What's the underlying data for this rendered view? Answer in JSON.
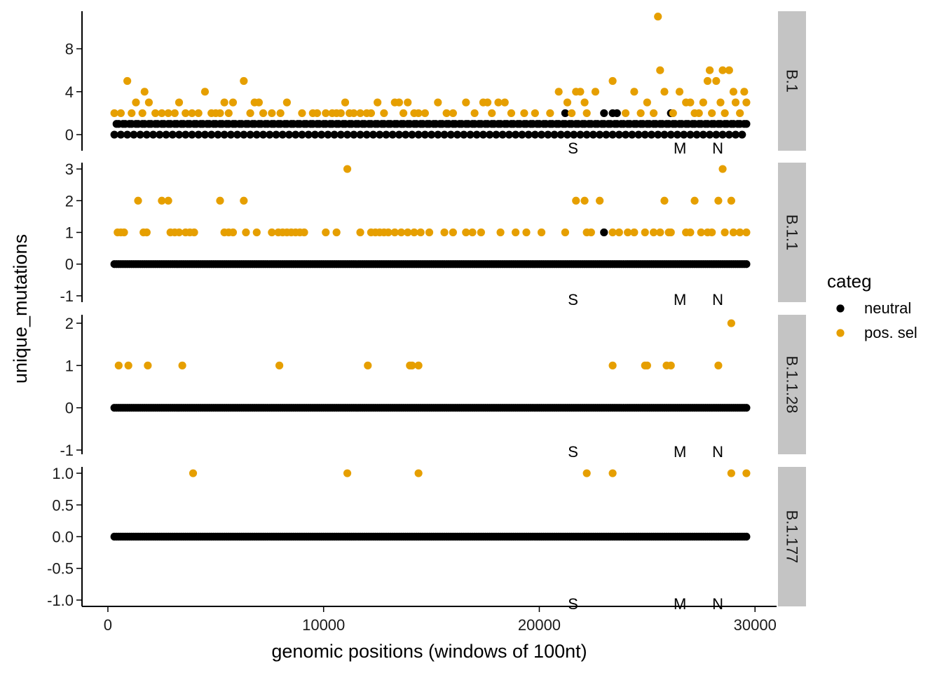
{
  "chart_data": {
    "type": "scatter",
    "xlabel": "genomic positions (windows of 100nt)",
    "ylabel": "unique_mutations",
    "x_ticks": [
      0,
      10000,
      20000,
      30000
    ],
    "x_tick_labels": [
      "0",
      "10000",
      "20000",
      "30000"
    ],
    "xlim": [
      -1200,
      31000
    ],
    "legend": {
      "title": "categ",
      "position": "right",
      "entries": [
        {
          "label": "neutral",
          "color": "#000000"
        },
        {
          "label": "pos. sel",
          "color": "#E69F00"
        }
      ]
    },
    "gene_annotations": [
      {
        "label": "S",
        "x": 21563
      },
      {
        "label": "M",
        "x": 26523
      },
      {
        "label": "N",
        "x": 28274
      }
    ],
    "neutral_x_range": [
      300,
      29600
    ],
    "panels": [
      {
        "strip": "B.1",
        "ylim": [
          -1.5,
          11.5
        ],
        "y_ticks": [
          0,
          4,
          8
        ],
        "y_tick_labels": [
          "0",
          "4",
          "8"
        ],
        "neutral_points": [
          {
            "x": 21200,
            "y": 2
          },
          {
            "x": 23000,
            "y": 2
          },
          {
            "x": 23400,
            "y": 2
          },
          {
            "x": 23600,
            "y": 2
          },
          {
            "x": 26100,
            "y": 2
          }
        ],
        "pos_sel_points": [
          {
            "x": 300,
            "y": 2
          },
          {
            "x": 600,
            "y": 2
          },
          {
            "x": 900,
            "y": 5
          },
          {
            "x": 1100,
            "y": 2
          },
          {
            "x": 1300,
            "y": 3
          },
          {
            "x": 1600,
            "y": 2
          },
          {
            "x": 1700,
            "y": 4
          },
          {
            "x": 1900,
            "y": 3
          },
          {
            "x": 2200,
            "y": 2
          },
          {
            "x": 2500,
            "y": 2
          },
          {
            "x": 2800,
            "y": 2
          },
          {
            "x": 3100,
            "y": 2
          },
          {
            "x": 3300,
            "y": 3
          },
          {
            "x": 3600,
            "y": 2
          },
          {
            "x": 3900,
            "y": 2
          },
          {
            "x": 4200,
            "y": 2
          },
          {
            "x": 4500,
            "y": 4
          },
          {
            "x": 4800,
            "y": 2
          },
          {
            "x": 5000,
            "y": 2
          },
          {
            "x": 5200,
            "y": 2
          },
          {
            "x": 5400,
            "y": 3
          },
          {
            "x": 5600,
            "y": 2
          },
          {
            "x": 5800,
            "y": 3
          },
          {
            "x": 6300,
            "y": 5
          },
          {
            "x": 6600,
            "y": 2
          },
          {
            "x": 6800,
            "y": 3
          },
          {
            "x": 7000,
            "y": 3
          },
          {
            "x": 7200,
            "y": 2
          },
          {
            "x": 7600,
            "y": 2
          },
          {
            "x": 8000,
            "y": 2
          },
          {
            "x": 8300,
            "y": 3
          },
          {
            "x": 9000,
            "y": 2
          },
          {
            "x": 9500,
            "y": 2
          },
          {
            "x": 9700,
            "y": 2
          },
          {
            "x": 10100,
            "y": 2
          },
          {
            "x": 10400,
            "y": 2
          },
          {
            "x": 10600,
            "y": 2
          },
          {
            "x": 10800,
            "y": 2
          },
          {
            "x": 11000,
            "y": 3
          },
          {
            "x": 11200,
            "y": 2
          },
          {
            "x": 11400,
            "y": 2
          },
          {
            "x": 11700,
            "y": 2
          },
          {
            "x": 12000,
            "y": 2
          },
          {
            "x": 12200,
            "y": 2
          },
          {
            "x": 12500,
            "y": 3
          },
          {
            "x": 12800,
            "y": 2
          },
          {
            "x": 13300,
            "y": 3
          },
          {
            "x": 13500,
            "y": 3
          },
          {
            "x": 13700,
            "y": 2
          },
          {
            "x": 13900,
            "y": 3
          },
          {
            "x": 14200,
            "y": 2
          },
          {
            "x": 14400,
            "y": 2
          },
          {
            "x": 14700,
            "y": 2
          },
          {
            "x": 15300,
            "y": 3
          },
          {
            "x": 15700,
            "y": 2
          },
          {
            "x": 16000,
            "y": 2
          },
          {
            "x": 16600,
            "y": 3
          },
          {
            "x": 17000,
            "y": 2
          },
          {
            "x": 17400,
            "y": 3
          },
          {
            "x": 17600,
            "y": 3
          },
          {
            "x": 17800,
            "y": 2
          },
          {
            "x": 18100,
            "y": 3
          },
          {
            "x": 18400,
            "y": 3
          },
          {
            "x": 18700,
            "y": 2
          },
          {
            "x": 19300,
            "y": 2
          },
          {
            "x": 19800,
            "y": 2
          },
          {
            "x": 20500,
            "y": 2
          },
          {
            "x": 20900,
            "y": 4
          },
          {
            "x": 21300,
            "y": 3
          },
          {
            "x": 21500,
            "y": 2
          },
          {
            "x": 21700,
            "y": 4
          },
          {
            "x": 21900,
            "y": 4
          },
          {
            "x": 22100,
            "y": 3
          },
          {
            "x": 22200,
            "y": 2
          },
          {
            "x": 22600,
            "y": 4
          },
          {
            "x": 23400,
            "y": 5
          },
          {
            "x": 24000,
            "y": 2
          },
          {
            "x": 24400,
            "y": 4
          },
          {
            "x": 24700,
            "y": 2
          },
          {
            "x": 25000,
            "y": 3
          },
          {
            "x": 25300,
            "y": 2
          },
          {
            "x": 25500,
            "y": 11
          },
          {
            "x": 25600,
            "y": 6
          },
          {
            "x": 25800,
            "y": 4
          },
          {
            "x": 26200,
            "y": 2
          },
          {
            "x": 26500,
            "y": 4
          },
          {
            "x": 26800,
            "y": 3
          },
          {
            "x": 27000,
            "y": 3
          },
          {
            "x": 27200,
            "y": 2
          },
          {
            "x": 27400,
            "y": 2
          },
          {
            "x": 27600,
            "y": 3
          },
          {
            "x": 27800,
            "y": 5
          },
          {
            "x": 27900,
            "y": 6
          },
          {
            "x": 28000,
            "y": 2
          },
          {
            "x": 28200,
            "y": 5
          },
          {
            "x": 28400,
            "y": 3
          },
          {
            "x": 28500,
            "y": 6
          },
          {
            "x": 28600,
            "y": 2
          },
          {
            "x": 28800,
            "y": 6
          },
          {
            "x": 29000,
            "y": 4
          },
          {
            "x": 29100,
            "y": 3
          },
          {
            "x": 29300,
            "y": 2
          },
          {
            "x": 29500,
            "y": 4
          },
          {
            "x": 29600,
            "y": 3
          }
        ]
      },
      {
        "strip": "B.1.1",
        "ylim": [
          -1.2,
          3.2
        ],
        "y_ticks": [
          -1,
          0,
          1,
          2,
          3
        ],
        "y_tick_labels": [
          "-1",
          "0",
          "1",
          "2",
          "3"
        ],
        "neutral_points": [
          {
            "x": 23000,
            "y": 1
          }
        ],
        "pos_sel_points": [
          {
            "x": 450,
            "y": 1
          },
          {
            "x": 600,
            "y": 1
          },
          {
            "x": 750,
            "y": 1
          },
          {
            "x": 1400,
            "y": 2
          },
          {
            "x": 1650,
            "y": 1
          },
          {
            "x": 1800,
            "y": 1
          },
          {
            "x": 2500,
            "y": 2
          },
          {
            "x": 2800,
            "y": 2
          },
          {
            "x": 2900,
            "y": 1
          },
          {
            "x": 3100,
            "y": 1
          },
          {
            "x": 3300,
            "y": 1
          },
          {
            "x": 3600,
            "y": 1
          },
          {
            "x": 3800,
            "y": 1
          },
          {
            "x": 4000,
            "y": 1
          },
          {
            "x": 5200,
            "y": 2
          },
          {
            "x": 5400,
            "y": 1
          },
          {
            "x": 5600,
            "y": 1
          },
          {
            "x": 5800,
            "y": 1
          },
          {
            "x": 6300,
            "y": 2
          },
          {
            "x": 6400,
            "y": 1
          },
          {
            "x": 6900,
            "y": 1
          },
          {
            "x": 7600,
            "y": 1
          },
          {
            "x": 7900,
            "y": 1
          },
          {
            "x": 8100,
            "y": 1
          },
          {
            "x": 8300,
            "y": 1
          },
          {
            "x": 8500,
            "y": 1
          },
          {
            "x": 8700,
            "y": 1
          },
          {
            "x": 8900,
            "y": 1
          },
          {
            "x": 9100,
            "y": 1
          },
          {
            "x": 10100,
            "y": 1
          },
          {
            "x": 10600,
            "y": 1
          },
          {
            "x": 11100,
            "y": 3
          },
          {
            "x": 11700,
            "y": 1
          },
          {
            "x": 12200,
            "y": 1
          },
          {
            "x": 12400,
            "y": 1
          },
          {
            "x": 12600,
            "y": 1
          },
          {
            "x": 12800,
            "y": 1
          },
          {
            "x": 13000,
            "y": 1
          },
          {
            "x": 13300,
            "y": 1
          },
          {
            "x": 13600,
            "y": 1
          },
          {
            "x": 13900,
            "y": 1
          },
          {
            "x": 14200,
            "y": 1
          },
          {
            "x": 14500,
            "y": 1
          },
          {
            "x": 14900,
            "y": 1
          },
          {
            "x": 15600,
            "y": 1
          },
          {
            "x": 16000,
            "y": 1
          },
          {
            "x": 16600,
            "y": 1
          },
          {
            "x": 16900,
            "y": 1
          },
          {
            "x": 17300,
            "y": 1
          },
          {
            "x": 18200,
            "y": 1
          },
          {
            "x": 18900,
            "y": 1
          },
          {
            "x": 19400,
            "y": 1
          },
          {
            "x": 20100,
            "y": 1
          },
          {
            "x": 21200,
            "y": 1
          },
          {
            "x": 21700,
            "y": 2
          },
          {
            "x": 22100,
            "y": 2
          },
          {
            "x": 22200,
            "y": 1
          },
          {
            "x": 22400,
            "y": 1
          },
          {
            "x": 22800,
            "y": 2
          },
          {
            "x": 23400,
            "y": 1
          },
          {
            "x": 23700,
            "y": 1
          },
          {
            "x": 24100,
            "y": 1
          },
          {
            "x": 24400,
            "y": 1
          },
          {
            "x": 24900,
            "y": 1
          },
          {
            "x": 25300,
            "y": 1
          },
          {
            "x": 25600,
            "y": 1
          },
          {
            "x": 25800,
            "y": 2
          },
          {
            "x": 26000,
            "y": 1
          },
          {
            "x": 26100,
            "y": 1
          },
          {
            "x": 26800,
            "y": 1
          },
          {
            "x": 27000,
            "y": 1
          },
          {
            "x": 27200,
            "y": 2
          },
          {
            "x": 27500,
            "y": 1
          },
          {
            "x": 27800,
            "y": 1
          },
          {
            "x": 28000,
            "y": 1
          },
          {
            "x": 28300,
            "y": 2
          },
          {
            "x": 28500,
            "y": 3
          },
          {
            "x": 28600,
            "y": 1
          },
          {
            "x": 28900,
            "y": 2
          },
          {
            "x": 29000,
            "y": 1
          },
          {
            "x": 29300,
            "y": 1
          },
          {
            "x": 29600,
            "y": 1
          }
        ]
      },
      {
        "strip": "B.1.1.28",
        "ylim": [
          -1.1,
          2.2
        ],
        "y_ticks": [
          -1,
          0,
          1,
          2
        ],
        "y_tick_labels": [
          "-1",
          "0",
          "1",
          "2"
        ],
        "neutral_points": [],
        "pos_sel_points": [
          {
            "x": 500,
            "y": 1
          },
          {
            "x": 950,
            "y": 1
          },
          {
            "x": 1850,
            "y": 1
          },
          {
            "x": 3450,
            "y": 1
          },
          {
            "x": 7950,
            "y": 1
          },
          {
            "x": 12050,
            "y": 1
          },
          {
            "x": 14000,
            "y": 1
          },
          {
            "x": 14100,
            "y": 1
          },
          {
            "x": 14400,
            "y": 1
          },
          {
            "x": 23400,
            "y": 1
          },
          {
            "x": 24900,
            "y": 1
          },
          {
            "x": 25000,
            "y": 1
          },
          {
            "x": 25900,
            "y": 1
          },
          {
            "x": 26100,
            "y": 1
          },
          {
            "x": 28300,
            "y": 1
          },
          {
            "x": 28900,
            "y": 2
          }
        ]
      },
      {
        "strip": "B.1.177",
        "ylim": [
          -1.1,
          1.1
        ],
        "y_ticks": [
          -1,
          -0.5,
          0,
          0.5,
          1
        ],
        "y_tick_labels": [
          "-1.0",
          "-0.5",
          "0.0",
          "0.5",
          "1.0"
        ],
        "neutral_points": [],
        "pos_sel_points": [
          {
            "x": 3950,
            "y": 1
          },
          {
            "x": 11100,
            "y": 1
          },
          {
            "x": 14400,
            "y": 1
          },
          {
            "x": 22200,
            "y": 1
          },
          {
            "x": 23400,
            "y": 1
          },
          {
            "x": 28900,
            "y": 1
          },
          {
            "x": 29600,
            "y": 1
          }
        ]
      }
    ]
  }
}
